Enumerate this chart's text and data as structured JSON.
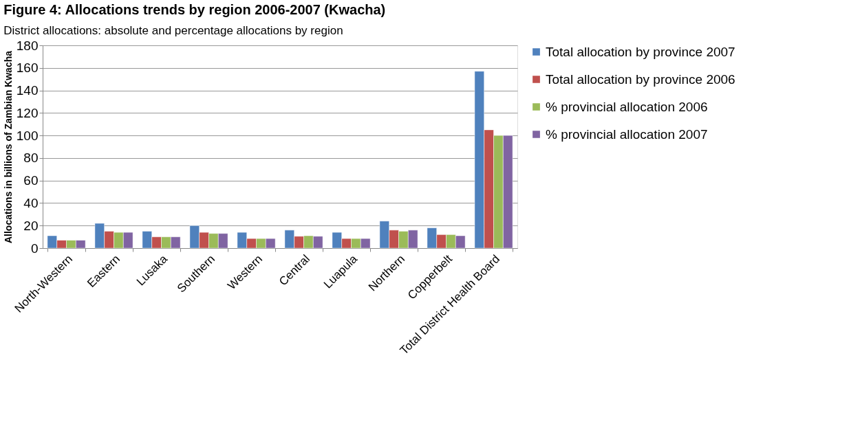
{
  "chart_data": {
    "type": "bar",
    "title": "Figure 4: Allocations trends by region 2006-2007 (Kwacha)",
    "subtitle": "District allocations: absolute and percentage allocations by region",
    "ylabel": "Allocations in billions of Zambian Kwacha",
    "categories": [
      "North-Western",
      "Eastern",
      "Lusaka",
      "Southern",
      "Western",
      "Central",
      "Luapula",
      "Northern",
      "Copperbelt",
      "Total District Health Board"
    ],
    "series": [
      {
        "name": "Total allocation by province 2007",
        "color": "#4f81bd",
        "values": [
          11,
          22,
          15,
          20,
          14,
          16,
          14,
          24,
          18,
          157
        ]
      },
      {
        "name": "Total allocation by province 2006",
        "color": "#c0504d",
        "values": [
          7,
          15,
          10,
          14,
          8.5,
          10.5,
          8.5,
          16,
          12,
          105
        ]
      },
      {
        "name": "% provincial allocation 2006",
        "color": "#9bbb59",
        "values": [
          7,
          14,
          10,
          13,
          8.5,
          11,
          8.5,
          15,
          12,
          100
        ]
      },
      {
        "name": "% provincial allocation 2007",
        "color": "#8064a2",
        "values": [
          7,
          14,
          10,
          13,
          8.5,
          10.5,
          8.5,
          16,
          11,
          100
        ]
      }
    ],
    "ylim": [
      0,
      180
    ],
    "yticks": [
      0,
      20,
      40,
      60,
      80,
      100,
      120,
      140,
      160,
      180
    ],
    "grid": "y",
    "legend": "right"
  }
}
